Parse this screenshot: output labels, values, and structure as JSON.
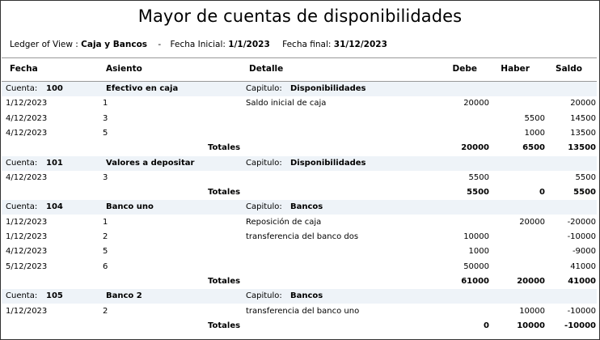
{
  "title": "Mayor de cuentas de disponibilidades",
  "filters": {
    "ledger_label": "Ledger of View :",
    "ledger_value": "Caja y Bancos",
    "separator": "-",
    "fecha_inicial_label": "Fecha Inicial:",
    "fecha_inicial_value": "1/1/2023",
    "fecha_final_label": "Fecha final:",
    "fecha_final_value": "31/12/2023"
  },
  "columns": {
    "fecha": "Fecha",
    "asiento": "Asiento",
    "detalle": "Detalle",
    "debe": "Debe",
    "haber": "Haber",
    "saldo": "Saldo"
  },
  "labels": {
    "cuenta": "Cuenta:",
    "capitulo": "Capitulo:",
    "totales": "Totales"
  },
  "accounts": [
    {
      "numero": "100",
      "nombre": "Efectivo en caja",
      "capitulo": "Disponibilidades",
      "rows": [
        {
          "fecha": "1/12/2023",
          "asiento": "1",
          "detalle": "Saldo inicial de caja",
          "debe": "20000",
          "haber": "",
          "saldo": "20000"
        },
        {
          "fecha": "4/12/2023",
          "asiento": "3",
          "detalle": "",
          "debe": "",
          "haber": "5500",
          "saldo": "14500"
        },
        {
          "fecha": "4/12/2023",
          "asiento": "5",
          "detalle": "",
          "debe": "",
          "haber": "1000",
          "saldo": "13500"
        }
      ],
      "totales": {
        "debe": "20000",
        "haber": "6500",
        "saldo": "13500"
      }
    },
    {
      "numero": "101",
      "nombre": "Valores a depositar",
      "capitulo": "Disponibilidades",
      "rows": [
        {
          "fecha": "4/12/2023",
          "asiento": "3",
          "detalle": "",
          "debe": "5500",
          "haber": "",
          "saldo": "5500"
        }
      ],
      "totales": {
        "debe": "5500",
        "haber": "0",
        "saldo": "5500"
      }
    },
    {
      "numero": "104",
      "nombre": "Banco uno",
      "capitulo": "Bancos",
      "rows": [
        {
          "fecha": "1/12/2023",
          "asiento": "1",
          "detalle": "Reposición de caja",
          "debe": "",
          "haber": "20000",
          "saldo": "-20000"
        },
        {
          "fecha": "1/12/2023",
          "asiento": "2",
          "detalle": "transferencia del banco dos",
          "debe": "10000",
          "haber": "",
          "saldo": "-10000"
        },
        {
          "fecha": "4/12/2023",
          "asiento": "5",
          "detalle": "",
          "debe": "1000",
          "haber": "",
          "saldo": "-9000"
        },
        {
          "fecha": "5/12/2023",
          "asiento": "6",
          "detalle": "",
          "debe": "50000",
          "haber": "",
          "saldo": "41000"
        }
      ],
      "totales": {
        "debe": "61000",
        "haber": "20000",
        "saldo": "41000"
      }
    },
    {
      "numero": "105",
      "nombre": "Banco 2",
      "capitulo": "Bancos",
      "rows": [
        {
          "fecha": "1/12/2023",
          "asiento": "2",
          "detalle": "transferencia del banco uno",
          "debe": "",
          "haber": "10000",
          "saldo": "-10000"
        }
      ],
      "totales": {
        "debe": "0",
        "haber": "10000",
        "saldo": "-10000"
      }
    }
  ]
}
